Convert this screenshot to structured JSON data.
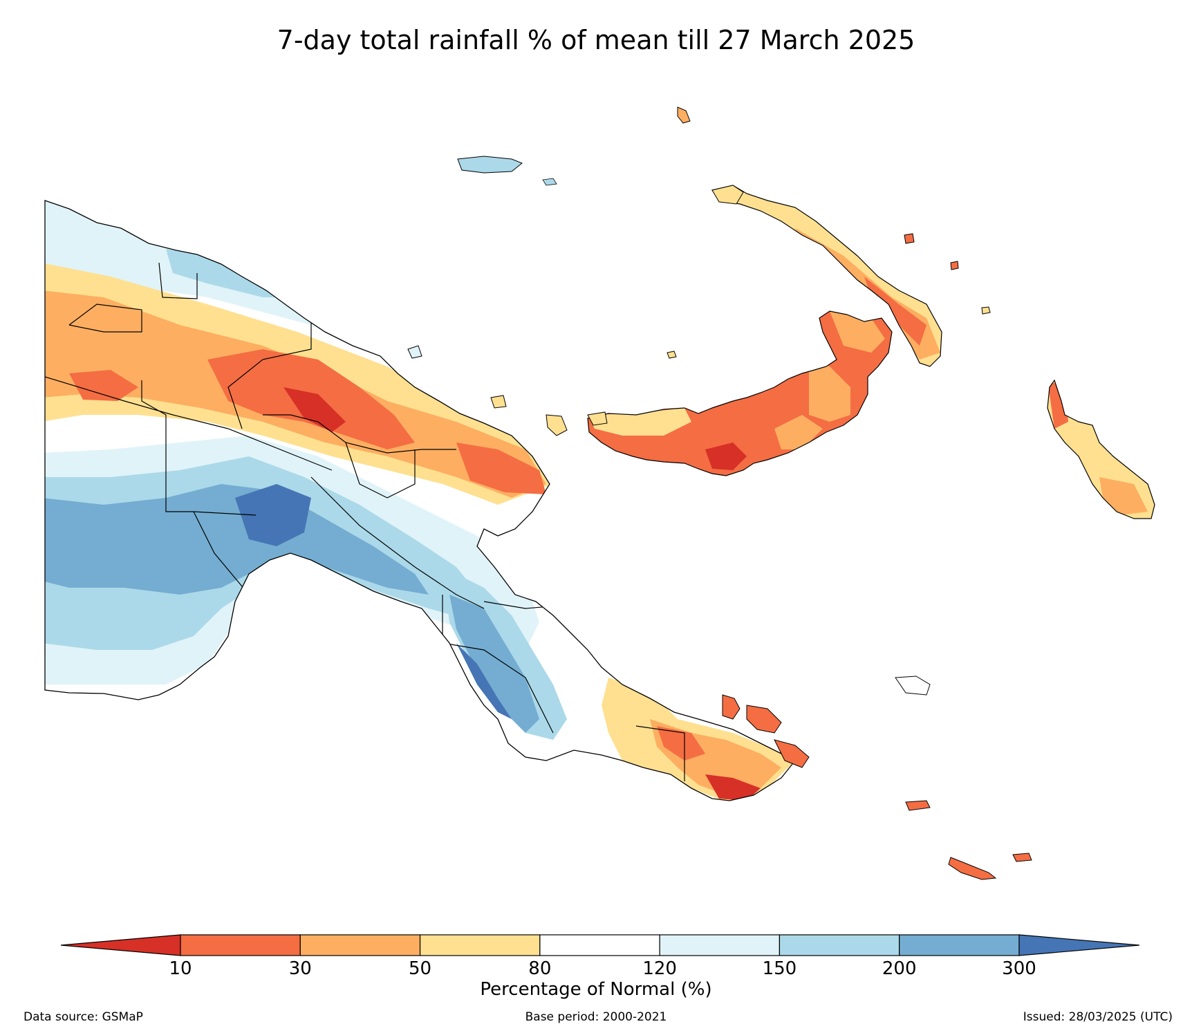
{
  "title": "7-day total rainfall % of mean till 27 March 2025",
  "colorbar": {
    "label": "Percentage of Normal (%)",
    "ticks": [
      "10",
      "30",
      "50",
      "80",
      "120",
      "150",
      "200",
      "300"
    ],
    "colors": {
      "below_10": "#d73027",
      "10_30": "#f46d43",
      "30_50": "#fdae61",
      "50_80": "#fee090",
      "80_120": "#ffffff",
      "120_150": "#e0f3f8",
      "150_200": "#abd9e9",
      "200_300": "#74add1",
      "above_300": "#4575b4"
    }
  },
  "footer": {
    "source": "Data source: GSMaP",
    "base_period": "Base period: 2000-2021",
    "issued": "Issued: 28/03/2025 (UTC)"
  }
}
